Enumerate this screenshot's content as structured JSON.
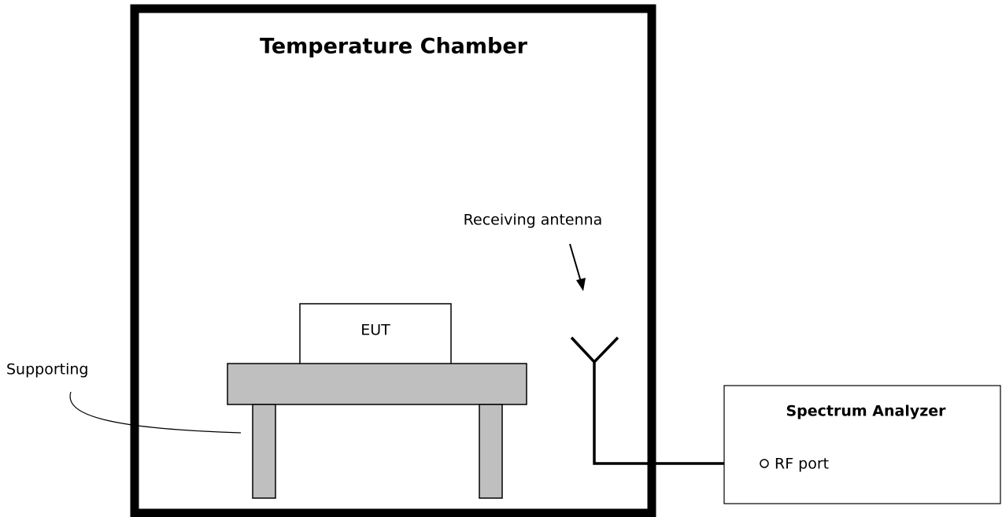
{
  "chamber": {
    "title": "Temperature Chamber"
  },
  "eut": {
    "label": "EUT"
  },
  "table": {
    "label": "Supporting"
  },
  "antenna": {
    "label": "Receiving antenna"
  },
  "analyzer": {
    "title": "Spectrum Analyzer",
    "port": "RF port"
  }
}
